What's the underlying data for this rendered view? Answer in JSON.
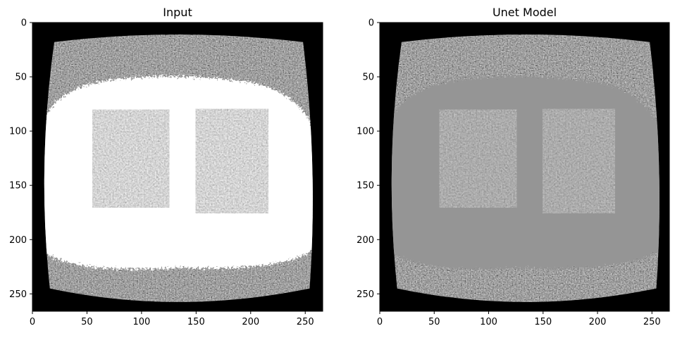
{
  "figure": {
    "panels": [
      {
        "title": "Input",
        "xticks": [
          "0",
          "50",
          "100",
          "150",
          "200",
          "250"
        ],
        "yticks": [
          "0",
          "50",
          "100",
          "150",
          "200",
          "250"
        ],
        "xlim": [
          0,
          266
        ],
        "ylim": [
          266,
          0
        ],
        "body_color": "#ffffff",
        "background_color": "#000000",
        "lung_texture": "grayscale-speckle"
      },
      {
        "title": "Unet Model",
        "xticks": [
          "0",
          "50",
          "100",
          "150",
          "200",
          "250"
        ],
        "yticks": [
          "0",
          "50",
          "100",
          "150",
          "200",
          "250"
        ],
        "xlim": [
          0,
          266
        ],
        "ylim": [
          266,
          0
        ],
        "body_color": "#959595",
        "background_color": "#000000",
        "lung_texture": "grayscale-speckle"
      }
    ]
  }
}
